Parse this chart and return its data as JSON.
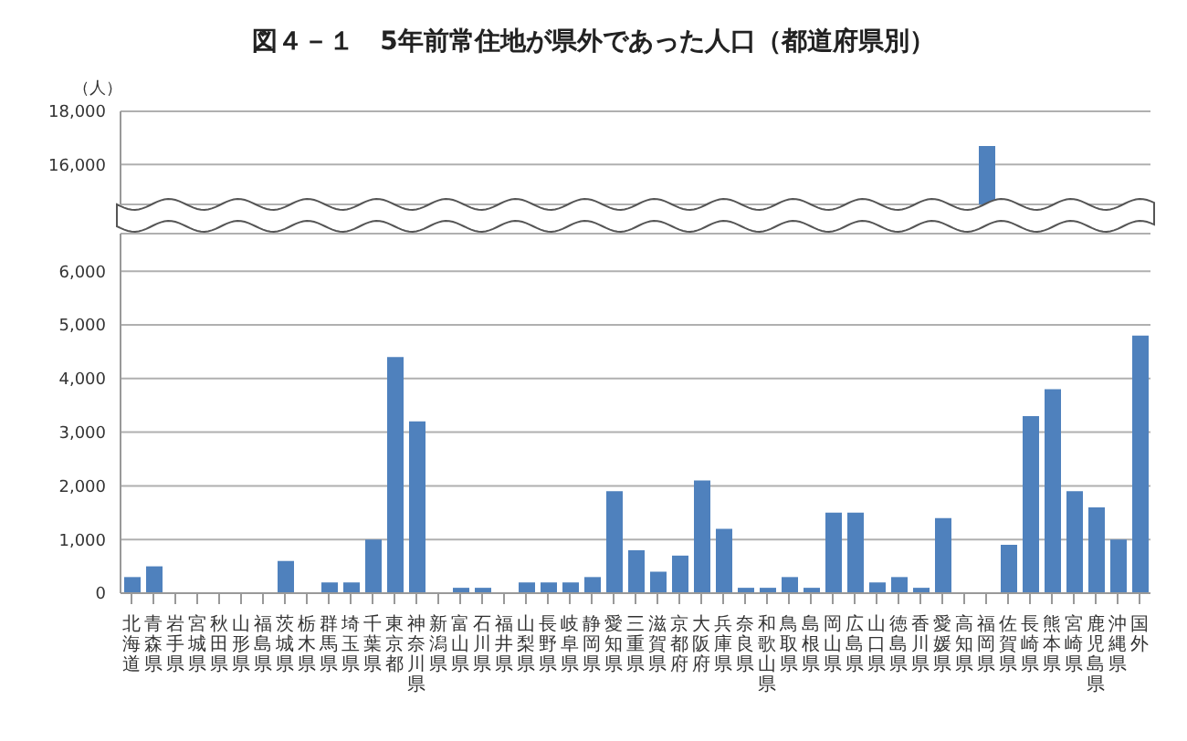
{
  "chart_data": [
    {
      "type": "bar",
      "title": "図４－１　5年前常住地が県外であった人口（都道府県別）",
      "ylabel": "（人）",
      "categories": [
        "北海道",
        "青森県",
        "岩手県",
        "宮城県",
        "秋田県",
        "山形県",
        "福島県",
        "茨城県",
        "栃木県",
        "群馬県",
        "埼玉県",
        "千葉県",
        "東京都",
        "神奈川県",
        "新潟県",
        "富山県",
        "石川県",
        "福井県",
        "山梨県",
        "長野県",
        "岐阜県",
        "静岡県",
        "愛知県",
        "三重県",
        "滋賀県",
        "京都府",
        "大阪府",
        "兵庫県",
        "奈良県",
        "和歌山県",
        "鳥取県",
        "島根県",
        "岡山県",
        "広島県",
        "山口県",
        "徳島県",
        "香川県",
        "愛媛県",
        "高知県",
        "福岡県",
        "佐賀県",
        "長崎県",
        "熊本県",
        "宮崎県",
        "鹿児島県",
        "沖縄県",
        "国外"
      ],
      "values": [
        null,
        null,
        null,
        null,
        null,
        null,
        null,
        null,
        null,
        null,
        null,
        null,
        null,
        null,
        null,
        null,
        null,
        null,
        null,
        null,
        null,
        null,
        null,
        null,
        null,
        null,
        null,
        null,
        null,
        null,
        null,
        null,
        null,
        null,
        null,
        null,
        null,
        null,
        null,
        16700,
        null,
        null,
        null,
        null,
        null,
        null,
        null
      ],
      "color": "#4f81bd",
      "ylim": [
        14500,
        18000
      ],
      "yticks": [
        {
          "value": 16000,
          "label": "16,000"
        },
        {
          "value": 18000,
          "label": "18,000"
        }
      ],
      "grid": "y",
      "tick_labels": "y"
    },
    {
      "type": "bar",
      "categories": [
        "北海道",
        "青森県",
        "岩手県",
        "宮城県",
        "秋田県",
        "山形県",
        "福島県",
        "茨城県",
        "栃木県",
        "群馬県",
        "埼玉県",
        "千葉県",
        "東京都",
        "神奈川県",
        "新潟県",
        "富山県",
        "石川県",
        "福井県",
        "山梨県",
        "長野県",
        "岐阜県",
        "静岡県",
        "愛知県",
        "三重県",
        "滋賀県",
        "京都府",
        "大阪府",
        "兵庫県",
        "奈良県",
        "和歌山県",
        "鳥取県",
        "島根県",
        "岡山県",
        "広島県",
        "山口県",
        "徳島県",
        "香川県",
        "愛媛県",
        "高知県",
        "福岡県",
        "佐賀県",
        "長崎県",
        "熊本県",
        "宮崎県",
        "鹿児島県",
        "沖縄県",
        "国外"
      ],
      "values": [
        300,
        500,
        0,
        0,
        0,
        0,
        0,
        600,
        0,
        200,
        200,
        1000,
        4400,
        3200,
        0,
        100,
        100,
        0,
        200,
        200,
        200,
        300,
        1900,
        800,
        400,
        700,
        2100,
        1200,
        100,
        100,
        300,
        100,
        1500,
        1500,
        200,
        300,
        100,
        1400,
        0,
        null,
        900,
        3300,
        3800,
        1900,
        1600,
        1000,
        4800
      ],
      "color": "#4f81bd",
      "ylim": [
        0,
        6700
      ],
      "yticks": [
        0,
        {
          "value": 1000,
          "label": "1,000"
        },
        {
          "value": 2000,
          "label": "2,000"
        },
        {
          "value": 3000,
          "label": "3,000"
        },
        {
          "value": 4000,
          "label": "4,000"
        },
        {
          "value": 5000,
          "label": "5,000"
        },
        {
          "value": 6000,
          "label": "6,000"
        }
      ],
      "grid": "y"
    }
  ]
}
